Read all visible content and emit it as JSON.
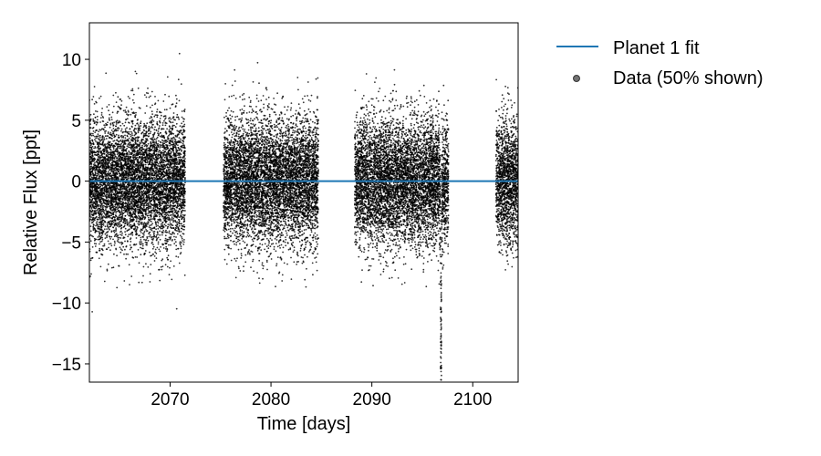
{
  "chart_data": {
    "type": "scatter",
    "title": "",
    "xlabel": "Time [days]",
    "ylabel": "Relative Flux [ppt]",
    "xlim": [
      2062.0,
      2104.5
    ],
    "ylim": [
      -16.5,
      13.0
    ],
    "xticks": [
      2070,
      2080,
      2090,
      2100
    ],
    "yticks": [
      10,
      5,
      0,
      -5,
      -10,
      -15
    ],
    "ytick_labels": [
      "10",
      "5",
      "0",
      "−5",
      "−10",
      "−15"
    ],
    "grid": false,
    "legend_position": "outside-right-top",
    "segments": [
      {
        "start": 2062.0,
        "end": 2071.5
      },
      {
        "start": 2075.3,
        "end": 2084.7
      },
      {
        "start": 2088.3,
        "end": 2097.6
      },
      {
        "start": 2102.3,
        "end": 2104.5
      }
    ],
    "data_scatter_sigma_ppt": 2.6,
    "transit": {
      "center": 2096.85,
      "depth_ppt": -15.3,
      "duration_days": 0.3
    },
    "series": [
      {
        "name": "Planet 1 fit",
        "kind": "line",
        "value": 0.0,
        "color": "#1f77b4"
      },
      {
        "name": "Data (50% shown)",
        "kind": "scatter",
        "color": "#000000"
      }
    ]
  }
}
